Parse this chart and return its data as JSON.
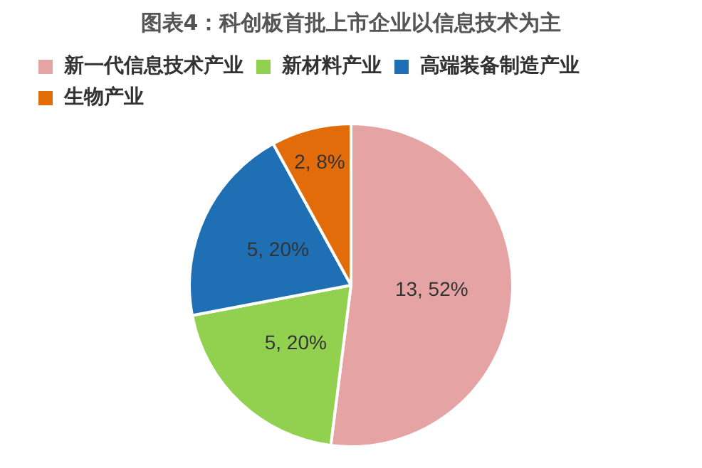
{
  "chart_data": {
    "type": "pie",
    "title": "图表4：科创板首批上市企业以信息技术为主",
    "categories": [
      "新一代信息技术产业",
      "新材料产业",
      "高端装备制造产业",
      "生物产业"
    ],
    "values": [
      13,
      5,
      5,
      2
    ],
    "value_labels": [
      "13, 52%",
      "5, 20%",
      "5, 20%",
      "2, 8%"
    ],
    "colors": [
      "#e6a3a3",
      "#92d050",
      "#1f6fb4",
      "#e36c0a"
    ],
    "legend": "top"
  }
}
